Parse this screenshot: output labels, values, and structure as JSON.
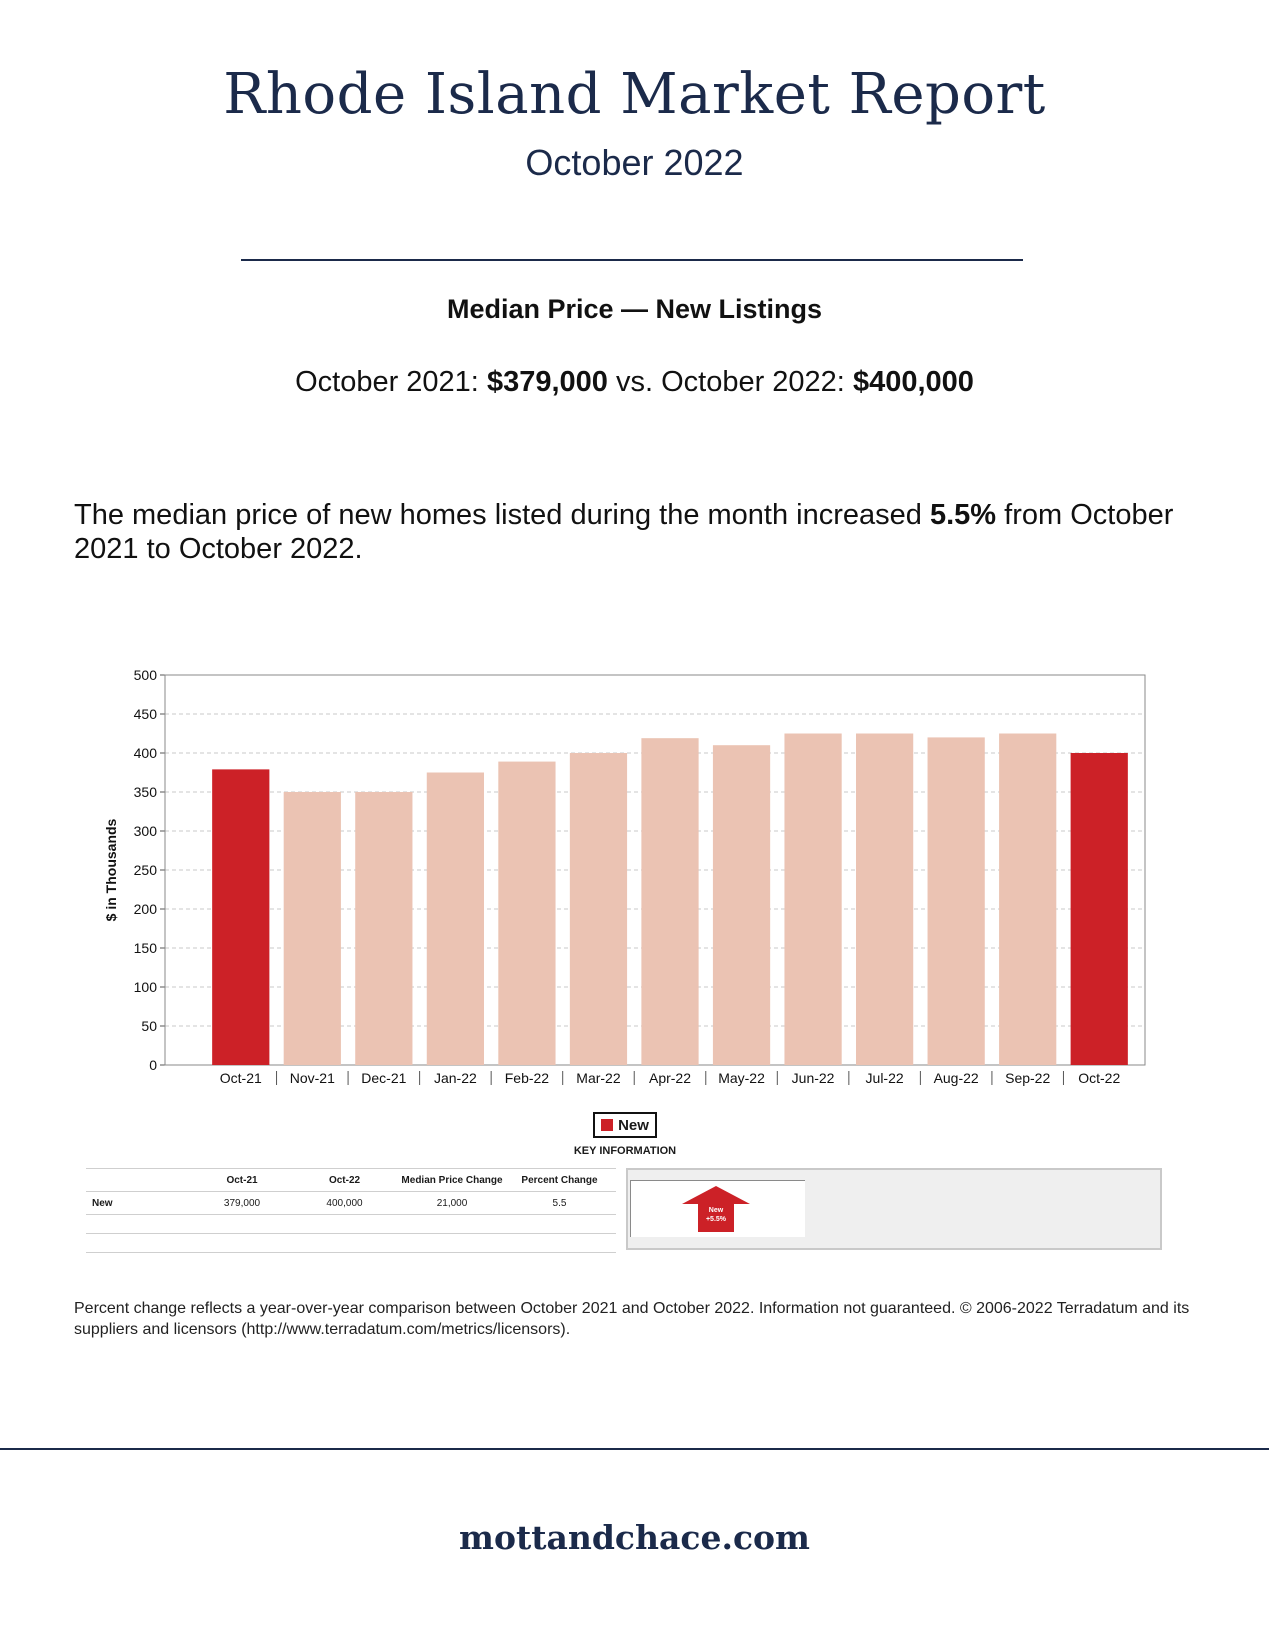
{
  "header": {
    "title": "Rhode Island Market Report",
    "subtitle": "October 2022"
  },
  "section": {
    "title": "Median Price — New Listings",
    "compare_a_label": "October 2021:",
    "compare_a_value": "$379,000",
    "compare_vs": "vs. October 2022:",
    "compare_b_value": "$400,000"
  },
  "description": {
    "before": "The median price of new homes listed during the month increased",
    "pct": "5.5%",
    "after": "from October 2021 to October 2022."
  },
  "chart_data": {
    "type": "bar",
    "ylabel": "$ in Thousands",
    "ylim": [
      0,
      500
    ],
    "yticks": [
      0,
      50,
      100,
      150,
      200,
      250,
      300,
      350,
      400,
      450,
      500
    ],
    "categories": [
      "Oct-21",
      "Nov-21",
      "Dec-21",
      "Jan-22",
      "Feb-22",
      "Mar-22",
      "Apr-22",
      "May-22",
      "Jun-22",
      "Jul-22",
      "Aug-22",
      "Sep-22",
      "Oct-22"
    ],
    "series": [
      {
        "name": "New",
        "values": [
          379,
          350,
          350,
          375,
          389,
          400,
          419,
          410,
          425,
          425,
          420,
          425,
          400
        ]
      }
    ],
    "highlight": [
      "Oct-21",
      "Oct-22"
    ],
    "grid": true,
    "legend_placement": "bottom-center"
  },
  "colors": {
    "highlight": "#cc2127",
    "bar": "#ebc3b3",
    "grid": "#c8c8c8"
  },
  "legend": {
    "label": "New",
    "key_info": "KEY INFORMATION"
  },
  "table": {
    "headers": [
      "",
      "Oct-21",
      "Oct-22",
      "Median Price Change",
      "Percent Change"
    ],
    "rows": [
      [
        "New",
        "379,000",
        "400,000",
        "21,000",
        "5.5"
      ]
    ]
  },
  "key_panel": {
    "label": "New",
    "change": "+5.5%",
    "icon": "up-arrow-icon"
  },
  "footnote": "Percent change reflects a year-over-year comparison between October 2021 and October 2022. Information not guaranteed. © 2006-2022 Terradatum and its suppliers and licensors (http://www.terradatum.com/metrics/licensors).",
  "footer": {
    "site": "mottandchace.com"
  }
}
